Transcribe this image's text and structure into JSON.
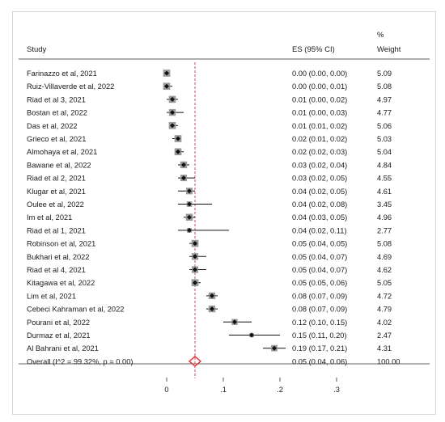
{
  "chart_data": {
    "type": "forest",
    "headers": {
      "study": "Study",
      "es": "ES (95% CI)",
      "weight_line1": "%",
      "weight_line2": "Weight"
    },
    "xticks": [
      "0",
      ".1",
      ".2",
      ".3"
    ],
    "xtick_values": [
      0,
      0.1,
      0.2,
      0.3
    ],
    "xlim": [
      0,
      0.3
    ],
    "reference_line": 0.05,
    "colors": {
      "point": "#111111",
      "box": "#9a9a9a",
      "ci": "#111111",
      "overall_diamond": "#e8242b",
      "reference_line": "#c0394a"
    },
    "studies": [
      {
        "label": "Farinazzo et al, 2021",
        "es": 0.0,
        "lo": 0.0,
        "hi": 0.0,
        "ci_text": "0.00 (0.00, 0.00)",
        "weight": "5.09"
      },
      {
        "label": "Ruiz-Villaverde et al, 2022",
        "es": 0.0,
        "lo": 0.0,
        "hi": 0.01,
        "ci_text": "0.00 (0.00, 0.01)",
        "weight": "5.08"
      },
      {
        "label": "Riad et al 3, 2021",
        "es": 0.01,
        "lo": 0.0,
        "hi": 0.02,
        "ci_text": "0.01 (0.00, 0.02)",
        "weight": "4.97"
      },
      {
        "label": "Bostan et al, 2022",
        "es": 0.01,
        "lo": 0.0,
        "hi": 0.03,
        "ci_text": "0.01 (0.00, 0.03)",
        "weight": "4.77"
      },
      {
        "label": "Das et al, 2022",
        "es": 0.01,
        "lo": 0.01,
        "hi": 0.02,
        "ci_text": "0.01 (0.01, 0.02)",
        "weight": "5.06"
      },
      {
        "label": "Grieco et al, 2021",
        "es": 0.02,
        "lo": 0.01,
        "hi": 0.02,
        "ci_text": "0.02 (0.01, 0.02)",
        "weight": "5.03"
      },
      {
        "label": "Almohaya et al, 2021",
        "es": 0.02,
        "lo": 0.02,
        "hi": 0.03,
        "ci_text": "0.02 (0.02, 0.03)",
        "weight": "5.04"
      },
      {
        "label": "Bawane et al, 2022",
        "es": 0.03,
        "lo": 0.02,
        "hi": 0.04,
        "ci_text": "0.03 (0.02, 0.04)",
        "weight": "4.84"
      },
      {
        "label": "Riad et al 2, 2021",
        "es": 0.03,
        "lo": 0.02,
        "hi": 0.05,
        "ci_text": "0.03 (0.02, 0.05)",
        "weight": "4.55"
      },
      {
        "label": "Klugar et al, 2021",
        "es": 0.04,
        "lo": 0.02,
        "hi": 0.05,
        "ci_text": "0.04 (0.02, 0.05)",
        "weight": "4.61"
      },
      {
        "label": "Oulee et al, 2022",
        "es": 0.04,
        "lo": 0.02,
        "hi": 0.08,
        "ci_text": "0.04 (0.02, 0.08)",
        "weight": "3.45"
      },
      {
        "label": "Im et al, 2021",
        "es": 0.04,
        "lo": 0.03,
        "hi": 0.05,
        "ci_text": "0.04 (0.03, 0.05)",
        "weight": "4.96"
      },
      {
        "label": "Riad et al 1, 2021",
        "es": 0.04,
        "lo": 0.02,
        "hi": 0.11,
        "ci_text": "0.04 (0.02, 0.11)",
        "weight": "2.77"
      },
      {
        "label": "Robinson et al, 2021",
        "es": 0.05,
        "lo": 0.04,
        "hi": 0.05,
        "ci_text": "0.05 (0.04, 0.05)",
        "weight": "5.08"
      },
      {
        "label": "Bukhari et al, 2022",
        "es": 0.05,
        "lo": 0.04,
        "hi": 0.07,
        "ci_text": "0.05 (0.04, 0.07)",
        "weight": "4.69"
      },
      {
        "label": "Riad et al 4, 2021",
        "es": 0.05,
        "lo": 0.04,
        "hi": 0.07,
        "ci_text": "0.05 (0.04, 0.07)",
        "weight": "4.62"
      },
      {
        "label": "Kitagawa et al, 2022",
        "es": 0.05,
        "lo": 0.05,
        "hi": 0.06,
        "ci_text": "0.05 (0.05, 0.06)",
        "weight": "5.05"
      },
      {
        "label": "Lim et al, 2021",
        "es": 0.08,
        "lo": 0.07,
        "hi": 0.09,
        "ci_text": "0.08 (0.07, 0.09)",
        "weight": "4.72"
      },
      {
        "label": "Cebeci Kahraman et al, 2022",
        "es": 0.08,
        "lo": 0.07,
        "hi": 0.09,
        "ci_text": "0.08 (0.07, 0.09)",
        "weight": "4.79"
      },
      {
        "label": "Pourani et al, 2022",
        "es": 0.12,
        "lo": 0.1,
        "hi": 0.15,
        "ci_text": "0.12 (0.10, 0.15)",
        "weight": "4.02"
      },
      {
        "label": "Durmaz et al, 2021",
        "es": 0.15,
        "lo": 0.11,
        "hi": 0.2,
        "ci_text": "0.15 (0.11, 0.20)",
        "weight": "2.47"
      },
      {
        "label": "Al Bahrani et al, 2021",
        "es": 0.19,
        "lo": 0.17,
        "hi": 0.21,
        "ci_text": "0.19 (0.17, 0.21)",
        "weight": "4.31"
      }
    ],
    "overall": {
      "label": "Overall  (I^2 = 99.32%, p = 0.00)",
      "es": 0.05,
      "lo": 0.04,
      "hi": 0.06,
      "ci_text": "0.05 (0.04, 0.06)",
      "weight": "100.00"
    }
  }
}
